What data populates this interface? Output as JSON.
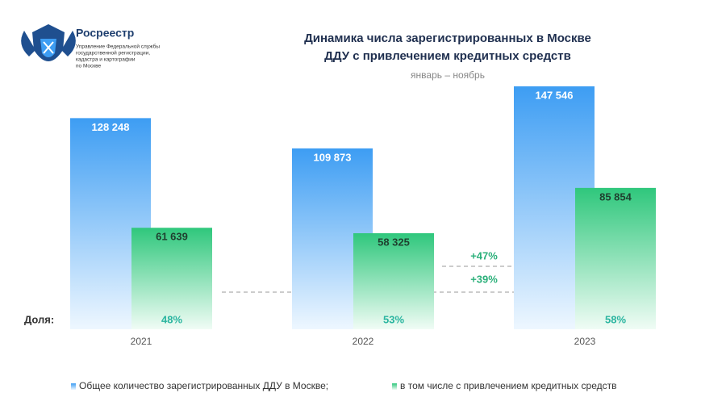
{
  "logo": {
    "name": "Росреестр",
    "lines": [
      "Управление Федеральной службы",
      "государственной регистрации,",
      "кадастра и картографии",
      "по Москве"
    ]
  },
  "chart_data": {
    "type": "bar",
    "title": [
      "Динамика числа зарегистрированных в Москве",
      "ДДУ с привлечением кредитных средств"
    ],
    "subtitle": "январь – ноябрь",
    "categories": [
      "2021",
      "2022",
      "2023"
    ],
    "series": [
      {
        "name": "Общее количество зарегистрированных ДДУ в Москве;",
        "color": "#3d9df3",
        "values": [
          128248,
          109873,
          147546
        ],
        "value_labels": [
          "128 248",
          "109 873",
          "147 546"
        ]
      },
      {
        "name": "в том числе с привлечением кредитных средств",
        "color": "#2fc77c",
        "values": [
          61639,
          58325,
          85854
        ],
        "value_labels": [
          "61 639",
          "58 325",
          "85 854"
        ]
      }
    ],
    "share_title": "Доля:",
    "shares": [
      48,
      53,
      58
    ],
    "share_labels": [
      "48%",
      "53%",
      "58%"
    ],
    "annotations": [
      "+47%",
      "+39%"
    ]
  }
}
